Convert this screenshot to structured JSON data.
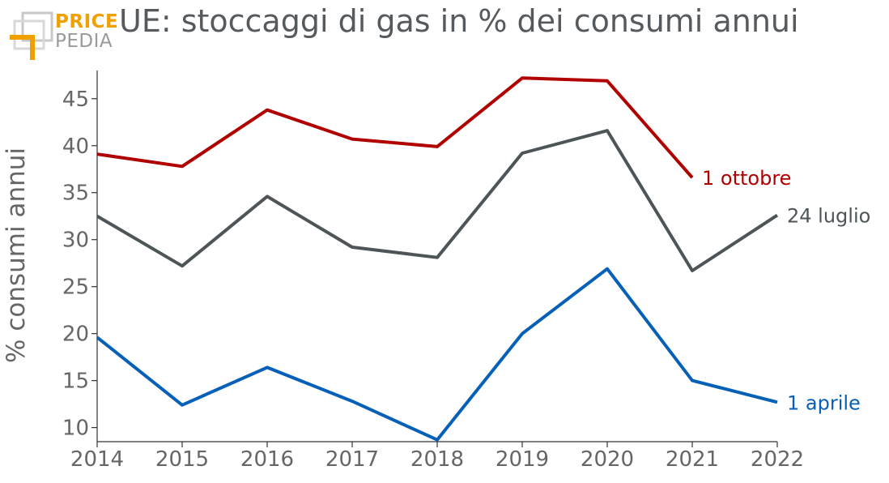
{
  "logo": {
    "line1": "PRICE",
    "line2": "PEDIA"
  },
  "colors": {
    "red": "#b00000",
    "grey": "#4d5558",
    "blue": "#0660b8",
    "logo_orange": "#f0a000",
    "text": "#666666"
  },
  "chart_data": {
    "type": "line",
    "title": "UE: stoccaggi di gas in % dei consumi annui",
    "xlabel": "",
    "ylabel": "% consumi annui",
    "x": [
      2014,
      2015,
      2016,
      2017,
      2018,
      2019,
      2020,
      2021,
      2022
    ],
    "xlim": [
      2014,
      2022
    ],
    "ylim": [
      8.5,
      48
    ],
    "yticks": [
      10,
      15,
      20,
      25,
      30,
      35,
      40,
      45
    ],
    "xticks": [
      "2014",
      "2015",
      "2016",
      "2017",
      "2018",
      "2019",
      "2020",
      "2021",
      "2022"
    ],
    "grid": false,
    "series": [
      {
        "name": "1 ottobre",
        "color": "#b00000",
        "values": [
          39.1,
          37.8,
          43.8,
          40.7,
          39.9,
          47.2,
          46.9,
          36.6,
          null
        ]
      },
      {
        "name": "24 luglio",
        "color": "#4d5558",
        "values": [
          32.5,
          27.2,
          34.6,
          29.2,
          28.1,
          39.2,
          41.6,
          26.7,
          32.6
        ]
      },
      {
        "name": "1 aprile",
        "color": "#0660b8",
        "values": [
          19.6,
          12.4,
          16.4,
          12.8,
          8.7,
          20.0,
          26.9,
          15.0,
          12.7
        ]
      }
    ]
  }
}
